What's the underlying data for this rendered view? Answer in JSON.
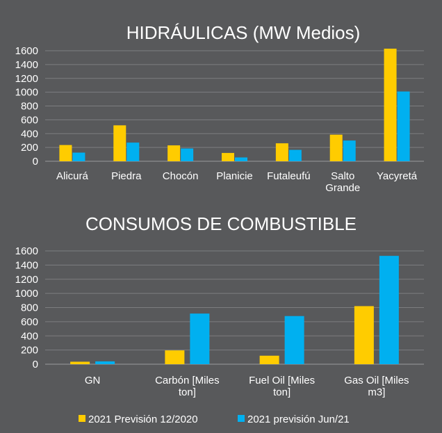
{
  "colors": {
    "background": "#58595b",
    "series_2020": "#ffcc00",
    "series_2021": "#00b0f0",
    "gridline": "#7d7e80",
    "text": "#ffffff"
  },
  "legend": [
    {
      "name": "2021 Previsión 12/2020",
      "color": "#ffcc00"
    },
    {
      "name": "2021 previsión Jun/21",
      "color": "#00b0f0"
    }
  ],
  "chart_data": [
    {
      "type": "bar",
      "title": "HIDRÁULICAS (MW Medios)",
      "categories": [
        [
          "Alicurá"
        ],
        [
          "Piedra"
        ],
        [
          "Chocón"
        ],
        [
          "Planicie"
        ],
        [
          "Futaleufú"
        ],
        [
          "Salto",
          "Grande"
        ],
        [
          "Yacyretá"
        ]
      ],
      "series": [
        {
          "name": "2021 Previsión 12/2020",
          "values": [
            235,
            520,
            230,
            120,
            260,
            385,
            1630
          ]
        },
        {
          "name": "2021 previsión Jun/21",
          "values": [
            125,
            270,
            185,
            55,
            165,
            300,
            1010
          ]
        }
      ],
      "yticks": [
        "0",
        "200",
        "400",
        "600",
        "800",
        "1000",
        "1200",
        "1400",
        "1600"
      ],
      "ylim": [
        0,
        1600
      ],
      "xlabel": "",
      "ylabel": ""
    },
    {
      "type": "bar",
      "title": "CONSUMOS DE COMBUSTIBLE",
      "categories": [
        [
          "GN"
        ],
        [
          "Carbón [Miles",
          "ton]"
        ],
        [
          "Fuel Oil  [Miles",
          "ton]"
        ],
        [
          "Gas Oil [Miles",
          "m3]"
        ]
      ],
      "series": [
        {
          "name": "2021 Previsión 12/2020",
          "values": [
            35,
            195,
            120,
            820
          ]
        },
        {
          "name": "2021 previsión Jun/21",
          "values": [
            40,
            715,
            680,
            1530
          ]
        }
      ],
      "yticks": [
        "0",
        "200",
        "400",
        "600",
        "800",
        "1000",
        "1200",
        "1400",
        "1600"
      ],
      "ylim": [
        0,
        1600
      ],
      "xlabel": "",
      "ylabel": ""
    }
  ]
}
